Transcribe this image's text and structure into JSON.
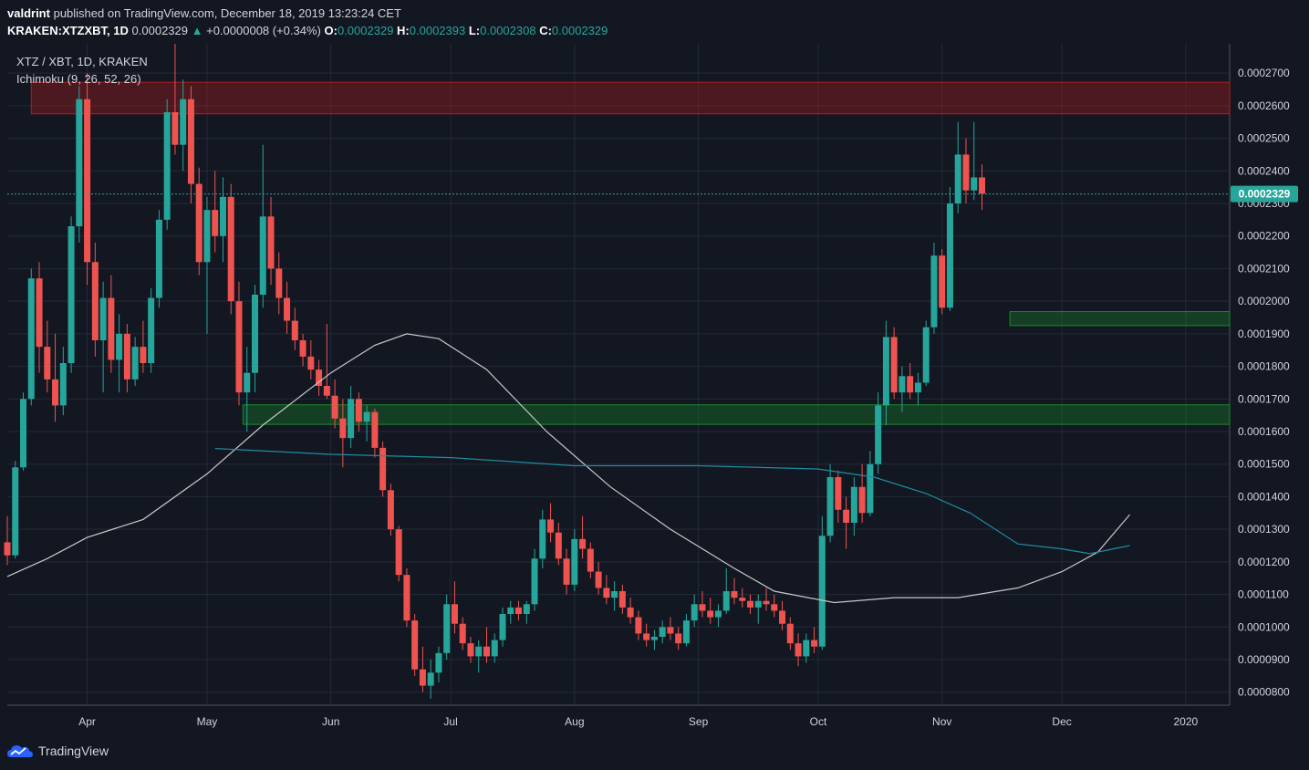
{
  "header": {
    "author": "valdrint",
    "published_text": "published on TradingView.com, December 18, 2019 13:23:24 CET",
    "symbol_line": "KRAKEN:XTZXBT, 1D",
    "last": "0.0002329",
    "change": "+0.0000008 (+0.34%)",
    "o_label": "O:",
    "o": "0.0002329",
    "h_label": "H:",
    "h": "0.0002393",
    "l_label": "L:",
    "l": "0.0002308",
    "c_label": "C:",
    "c": "0.0002329"
  },
  "legend": {
    "series_name": "XTZ / XBT, 1D, KRAKEN",
    "indicator": "Ichimoku (9, 26, 52, 26)"
  },
  "price_tag": "0.0002329",
  "footer": {
    "brand": "TradingView"
  },
  "colors": {
    "background": "#131722",
    "grid": "#363c4e",
    "up": "#26a69a",
    "down": "#ef5350",
    "resistance_zone": "#b71c1c",
    "support_zone": "#1b8a2a",
    "ma_white": "#c8c8c8",
    "ma_teal": "#1c8ea0"
  },
  "chart_data": {
    "type": "candlestick",
    "ylim": [
      7.6e-05,
      0.000279
    ],
    "y_ticks": [
      "0.0002700",
      "0.0002600",
      "0.0002500",
      "0.0002400",
      "0.0002300",
      "0.0002200",
      "0.0002100",
      "0.0002000",
      "0.0001900",
      "0.0001800",
      "0.0001700",
      "0.0001600",
      "0.0001500",
      "0.0001400",
      "0.0001300",
      "0.0001200",
      "0.0001100",
      "0.0001000",
      "0.0000900",
      "0.0000800"
    ],
    "y_tick_values": [
      0.00027,
      0.00026,
      0.00025,
      0.00024,
      0.00023,
      0.00022,
      0.00021,
      0.0002,
      0.00019,
      0.00018,
      0.00017,
      0.00016,
      0.00015,
      0.00014,
      0.00013,
      0.00012,
      0.00011,
      0.0001,
      9e-05,
      8e-05
    ],
    "x_ticks": [
      "Apr",
      "May",
      "Jun",
      "Jul",
      "Aug",
      "Sep",
      "Oct",
      "Nov",
      "Dec",
      "2020"
    ],
    "x_tick_dates": [
      "2019-04-01",
      "2019-05-01",
      "2019-06-01",
      "2019-07-01",
      "2019-08-01",
      "2019-09-01",
      "2019-10-01",
      "2019-11-01",
      "2019-12-01",
      "2020-01-01"
    ],
    "x_range": [
      "2019-03-12",
      "2020-01-12"
    ],
    "last_price": 0.0002329,
    "zones": [
      {
        "kind": "resistance",
        "from": "2019-03-18",
        "to": "2020-01-12",
        "low": 0.0002575,
        "high": 0.0002672
      },
      {
        "kind": "support",
        "from": "2019-11-18",
        "to": "2020-01-12",
        "low": 0.0001925,
        "high": 0.0001968
      },
      {
        "kind": "support",
        "from": "2019-05-10",
        "to": "2020-01-12",
        "low": 0.0001622,
        "high": 0.0001682
      }
    ],
    "ma_white": [
      [
        "2019-03-12",
        0.0001155
      ],
      [
        "2019-03-22",
        0.000121
      ],
      [
        "2019-04-01",
        0.0001275
      ],
      [
        "2019-04-15",
        0.000133
      ],
      [
        "2019-05-01",
        0.000147
      ],
      [
        "2019-05-15",
        0.000162
      ],
      [
        "2019-06-01",
        0.000178
      ],
      [
        "2019-06-12",
        0.0001865
      ],
      [
        "2019-06-20",
        0.00019
      ],
      [
        "2019-06-28",
        0.0001885
      ],
      [
        "2019-07-10",
        0.000179
      ],
      [
        "2019-07-25",
        0.00016
      ],
      [
        "2019-08-10",
        0.000143
      ],
      [
        "2019-08-25",
        0.00013
      ],
      [
        "2019-09-10",
        0.000118
      ],
      [
        "2019-09-20",
        0.000111
      ],
      [
        "2019-10-05",
        0.0001075
      ],
      [
        "2019-10-20",
        0.000109
      ],
      [
        "2019-11-05",
        0.000109
      ],
      [
        "2019-11-20",
        0.000112
      ],
      [
        "2019-12-01",
        0.000117
      ],
      [
        "2019-12-10",
        0.000123
      ],
      [
        "2019-12-18",
        0.0001345
      ]
    ],
    "ma_teal": [
      [
        "2019-05-03",
        0.0001548
      ],
      [
        "2019-06-01",
        0.000153
      ],
      [
        "2019-07-01",
        0.000152
      ],
      [
        "2019-08-01",
        0.0001495
      ],
      [
        "2019-09-01",
        0.0001495
      ],
      [
        "2019-10-01",
        0.0001485
      ],
      [
        "2019-10-15",
        0.000146
      ],
      [
        "2019-10-28",
        0.000141
      ],
      [
        "2019-11-08",
        0.000135
      ],
      [
        "2019-11-20",
        0.0001255
      ],
      [
        "2019-12-01",
        0.000124
      ],
      [
        "2019-12-08",
        0.0001225
      ],
      [
        "2019-12-18",
        0.000125
      ]
    ],
    "candles_ohlc": [
      [
        "2019-03-12",
        0.000126,
        0.000134,
        0.000119,
        0.000122
      ],
      [
        "2019-03-14",
        0.000122,
        0.000151,
        0.000121,
        0.000149
      ],
      [
        "2019-03-16",
        0.000149,
        0.000172,
        0.000148,
        0.00017
      ],
      [
        "2019-03-18",
        0.00017,
        0.00021,
        0.000168,
        0.000207
      ],
      [
        "2019-03-20",
        0.000207,
        0.000212,
        0.000178,
        0.000186
      ],
      [
        "2019-03-22",
        0.000186,
        0.000194,
        0.000172,
        0.000176
      ],
      [
        "2019-03-24",
        0.000176,
        0.00019,
        0.000163,
        0.000168
      ],
      [
        "2019-03-26",
        0.000168,
        0.000186,
        0.000165,
        0.000181
      ],
      [
        "2019-03-28",
        0.000181,
        0.000226,
        0.000178,
        0.000223
      ],
      [
        "2019-03-30",
        0.000223,
        0.000266,
        0.000218,
        0.000262
      ],
      [
        "2019-04-01",
        0.000262,
        0.00027,
        0.000205,
        0.000212
      ],
      [
        "2019-04-03",
        0.000212,
        0.000218,
        0.000183,
        0.000188
      ],
      [
        "2019-04-05",
        0.000188,
        0.000206,
        0.000172,
        0.000201
      ],
      [
        "2019-04-07",
        0.000201,
        0.000208,
        0.000178,
        0.000182
      ],
      [
        "2019-04-09",
        0.000182,
        0.000196,
        0.000172,
        0.00019
      ],
      [
        "2019-04-11",
        0.00019,
        0.000193,
        0.000172,
        0.000176
      ],
      [
        "2019-04-13",
        0.000176,
        0.000189,
        0.000174,
        0.000186
      ],
      [
        "2019-04-15",
        0.000186,
        0.000194,
        0.000178,
        0.000181
      ],
      [
        "2019-04-17",
        0.000181,
        0.000204,
        0.000178,
        0.000201
      ],
      [
        "2019-04-19",
        0.000201,
        0.000228,
        0.000198,
        0.000225
      ],
      [
        "2019-04-21",
        0.000225,
        0.000262,
        0.000222,
        0.000258
      ],
      [
        "2019-04-23",
        0.000258,
        0.000279,
        0.000245,
        0.000248
      ],
      [
        "2019-04-25",
        0.000248,
        0.000268,
        0.00024,
        0.000262
      ],
      [
        "2019-04-27",
        0.000262,
        0.000266,
        0.00023,
        0.000236
      ],
      [
        "2019-04-29",
        0.000236,
        0.000241,
        0.000208,
        0.000212
      ],
      [
        "2019-05-01",
        0.000212,
        0.000232,
        0.00019,
        0.000228
      ],
      [
        "2019-05-03",
        0.000228,
        0.00024,
        0.000215,
        0.00022
      ],
      [
        "2019-05-05",
        0.00022,
        0.000238,
        0.000212,
        0.000232
      ],
      [
        "2019-05-07",
        0.000232,
        0.000236,
        0.000196,
        0.0002
      ],
      [
        "2019-05-09",
        0.0002,
        0.000206,
        0.000168,
        0.000172
      ],
      [
        "2019-05-11",
        0.000172,
        0.000186,
        0.00016,
        0.000178
      ],
      [
        "2019-05-13",
        0.000178,
        0.000205,
        0.000172,
        0.000202
      ],
      [
        "2019-05-15",
        0.000202,
        0.000248,
        0.000198,
        0.000226
      ],
      [
        "2019-05-17",
        0.000226,
        0.000232,
        0.000205,
        0.00021
      ],
      [
        "2019-05-19",
        0.00021,
        0.000215,
        0.000196,
        0.000201
      ],
      [
        "2019-05-21",
        0.000201,
        0.000206,
        0.00019,
        0.000194
      ],
      [
        "2019-05-23",
        0.000194,
        0.000198,
        0.000185,
        0.000188
      ],
      [
        "2019-05-25",
        0.000188,
        0.00019,
        0.00018,
        0.000183
      ],
      [
        "2019-05-27",
        0.000183,
        0.000188,
        0.000176,
        0.000179
      ],
      [
        "2019-05-29",
        0.000179,
        0.000182,
        0.000171,
        0.000174
      ],
      [
        "2019-05-31",
        0.000174,
        0.000193,
        0.00017,
        0.000171
      ],
      [
        "2019-06-02",
        0.000171,
        0.000176,
        0.000161,
        0.000164
      ],
      [
        "2019-06-04",
        0.000164,
        0.00017,
        0.000149,
        0.000158
      ],
      [
        "2019-06-06",
        0.000158,
        0.000174,
        0.000155,
        0.00017
      ],
      [
        "2019-06-08",
        0.00017,
        0.000172,
        0.00016,
        0.000163
      ],
      [
        "2019-06-10",
        0.000163,
        0.000168,
        0.000157,
        0.000166
      ],
      [
        "2019-06-12",
        0.000166,
        0.000167,
        0.000152,
        0.000155
      ],
      [
        "2019-06-14",
        0.000155,
        0.000157,
        0.00014,
        0.000142
      ],
      [
        "2019-06-16",
        0.000142,
        0.000144,
        0.000128,
        0.00013
      ],
      [
        "2019-06-18",
        0.00013,
        0.000131,
        0.000114,
        0.000116
      ],
      [
        "2019-06-20",
        0.000116,
        0.000118,
        0.0001,
        0.000102
      ],
      [
        "2019-06-22",
        0.000102,
        0.000104,
        8.5e-05,
        8.7e-05
      ],
      [
        "2019-06-24",
        8.7e-05,
        9.4e-05,
        8e-05,
        8.2e-05
      ],
      [
        "2019-06-26",
        8.2e-05,
        9e-05,
        7.8e-05,
        8.6e-05
      ],
      [
        "2019-06-28",
        8.6e-05,
        9.4e-05,
        8.3e-05,
        9.2e-05
      ],
      [
        "2019-06-30",
        9.2e-05,
        0.00011,
        9e-05,
        0.000107
      ],
      [
        "2019-07-02",
        0.000107,
        0.000114,
        9.8e-05,
        0.000101
      ],
      [
        "2019-07-04",
        0.000101,
        0.000103,
        9.3e-05,
        9.5e-05
      ],
      [
        "2019-07-06",
        9.5e-05,
        9.7e-05,
        8.9e-05,
        9.1e-05
      ],
      [
        "2019-07-08",
        9.1e-05,
        9.6e-05,
        8.6e-05,
        9.4e-05
      ],
      [
        "2019-07-10",
        9.4e-05,
        0.0001,
        8.9e-05,
        9.1e-05
      ],
      [
        "2019-07-12",
        9.1e-05,
        9.8e-05,
        8.9e-05,
        9.6e-05
      ],
      [
        "2019-07-14",
        9.6e-05,
        0.000106,
        9.4e-05,
        0.000104
      ],
      [
        "2019-07-16",
        0.000104,
        0.000108,
        0.000101,
        0.000106
      ],
      [
        "2019-07-18",
        0.000106,
        0.000108,
        0.000102,
        0.000104
      ],
      [
        "2019-07-20",
        0.000104,
        0.000108,
        0.000101,
        0.000107
      ],
      [
        "2019-07-22",
        0.000107,
        0.000124,
        0.000105,
        0.000121
      ],
      [
        "2019-07-24",
        0.000121,
        0.000136,
        0.000118,
        0.000133
      ],
      [
        "2019-07-26",
        0.000133,
        0.000138,
        0.000126,
        0.000129
      ],
      [
        "2019-07-28",
        0.000129,
        0.000132,
        0.000119,
        0.000121
      ],
      [
        "2019-07-30",
        0.000121,
        0.000124,
        0.00011,
        0.000113
      ],
      [
        "2019-08-01",
        0.000113,
        0.00013,
        0.000111,
        0.000127
      ],
      [
        "2019-08-03",
        0.000127,
        0.000134,
        0.000121,
        0.000124
      ],
      [
        "2019-08-05",
        0.000124,
        0.000126,
        0.000115,
        0.000117
      ],
      [
        "2019-08-07",
        0.000117,
        0.00012,
        0.00011,
        0.000112
      ],
      [
        "2019-08-09",
        0.000112,
        0.000116,
        0.000107,
        0.000109
      ],
      [
        "2019-08-11",
        0.000109,
        0.000114,
        0.000105,
        0.000111
      ],
      [
        "2019-08-13",
        0.000111,
        0.000113,
        0.000104,
        0.000106
      ],
      [
        "2019-08-15",
        0.000106,
        0.000109,
        0.000101,
        0.000103
      ],
      [
        "2019-08-17",
        0.000103,
        0.000105,
        9.6e-05,
        9.8e-05
      ],
      [
        "2019-08-19",
        9.8e-05,
        0.000101,
        9.4e-05,
        9.6e-05
      ],
      [
        "2019-08-21",
        9.6e-05,
        9.9e-05,
        9.3e-05,
        9.7e-05
      ],
      [
        "2019-08-23",
        9.7e-05,
        0.000102,
        9.5e-05,
        0.0001
      ],
      [
        "2019-08-25",
        0.0001,
        0.000103,
        9.6e-05,
        9.8e-05
      ],
      [
        "2019-08-27",
        9.8e-05,
        0.0001,
        9.3e-05,
        9.5e-05
      ],
      [
        "2019-08-29",
        9.5e-05,
        0.000104,
        9.4e-05,
        0.000102
      ],
      [
        "2019-08-31",
        0.000102,
        0.00011,
        0.0001,
        0.000107
      ],
      [
        "2019-09-02",
        0.000107,
        0.000111,
        0.000103,
        0.000105
      ],
      [
        "2019-09-04",
        0.000105,
        0.000109,
        0.000101,
        0.000103
      ],
      [
        "2019-09-06",
        0.000103,
        0.000107,
        0.0001,
        0.000105
      ],
      [
        "2019-09-08",
        0.000105,
        0.000118,
        0.000104,
        0.000111
      ],
      [
        "2019-09-10",
        0.000111,
        0.000115,
        0.000107,
        0.000109
      ],
      [
        "2019-09-12",
        0.000109,
        0.000112,
        0.000106,
        0.000108
      ],
      [
        "2019-09-14",
        0.000108,
        0.00011,
        0.000104,
        0.000106
      ],
      [
        "2019-09-16",
        0.000106,
        0.00011,
        0.000101,
        0.000108
      ],
      [
        "2019-09-18",
        0.000108,
        0.000112,
        0.000105,
        0.000107
      ],
      [
        "2019-09-20",
        0.000107,
        0.00011,
        0.000103,
        0.000105
      ],
      [
        "2019-09-22",
        0.000105,
        0.000108,
        9.9e-05,
        0.000101
      ],
      [
        "2019-09-24",
        0.000101,
        0.000103,
        9.3e-05,
        9.5e-05
      ],
      [
        "2019-09-26",
        9.5e-05,
        9.8e-05,
        8.8e-05,
        9.1e-05
      ],
      [
        "2019-09-28",
        9.1e-05,
        9.8e-05,
        8.9e-05,
        9.6e-05
      ],
      [
        "2019-09-30",
        9.6e-05,
        0.0001,
        9.2e-05,
        9.4e-05
      ],
      [
        "2019-10-02",
        9.4e-05,
        0.000134,
        9.3e-05,
        0.000128
      ],
      [
        "2019-10-04",
        0.000128,
        0.00015,
        0.000126,
        0.000146
      ],
      [
        "2019-10-06",
        0.000146,
        0.000148,
        0.000132,
        0.000136
      ],
      [
        "2019-10-08",
        0.000136,
        0.00014,
        0.000124,
        0.000132
      ],
      [
        "2019-10-10",
        0.000132,
        0.000146,
        0.000128,
        0.000143
      ],
      [
        "2019-10-12",
        0.000143,
        0.00015,
        0.000132,
        0.000135
      ],
      [
        "2019-10-14",
        0.000135,
        0.000154,
        0.000134,
        0.00015
      ],
      [
        "2019-10-16",
        0.00015,
        0.000172,
        0.000147,
        0.000168
      ],
      [
        "2019-10-18",
        0.000168,
        0.000194,
        0.000162,
        0.000189
      ],
      [
        "2019-10-20",
        0.000189,
        0.000192,
        0.00017,
        0.000172
      ],
      [
        "2019-10-22",
        0.000172,
        0.00018,
        0.000166,
        0.000177
      ],
      [
        "2019-10-24",
        0.000177,
        0.000181,
        0.00017,
        0.000172
      ],
      [
        "2019-10-26",
        0.000172,
        0.000178,
        0.000168,
        0.000175
      ],
      [
        "2019-10-28",
        0.000175,
        0.000194,
        0.000174,
        0.000192
      ],
      [
        "2019-10-30",
        0.000192,
        0.000218,
        0.00019,
        0.000214
      ],
      [
        "2019-11-01",
        0.000214,
        0.000216,
        0.000196,
        0.000198
      ],
      [
        "2019-11-03",
        0.000198,
        0.000235,
        0.000197,
        0.00023
      ],
      [
        "2019-11-05",
        0.00023,
        0.000255,
        0.000227,
        0.000245
      ],
      [
        "2019-11-07",
        0.000245,
        0.00025,
        0.00023,
        0.000234
      ],
      [
        "2019-11-09",
        0.000234,
        0.000255,
        0.000231,
        0.000238
      ],
      [
        "2019-11-11",
        0.000238,
        0.000242,
        0.000228,
        0.000233
      ]
    ]
  }
}
